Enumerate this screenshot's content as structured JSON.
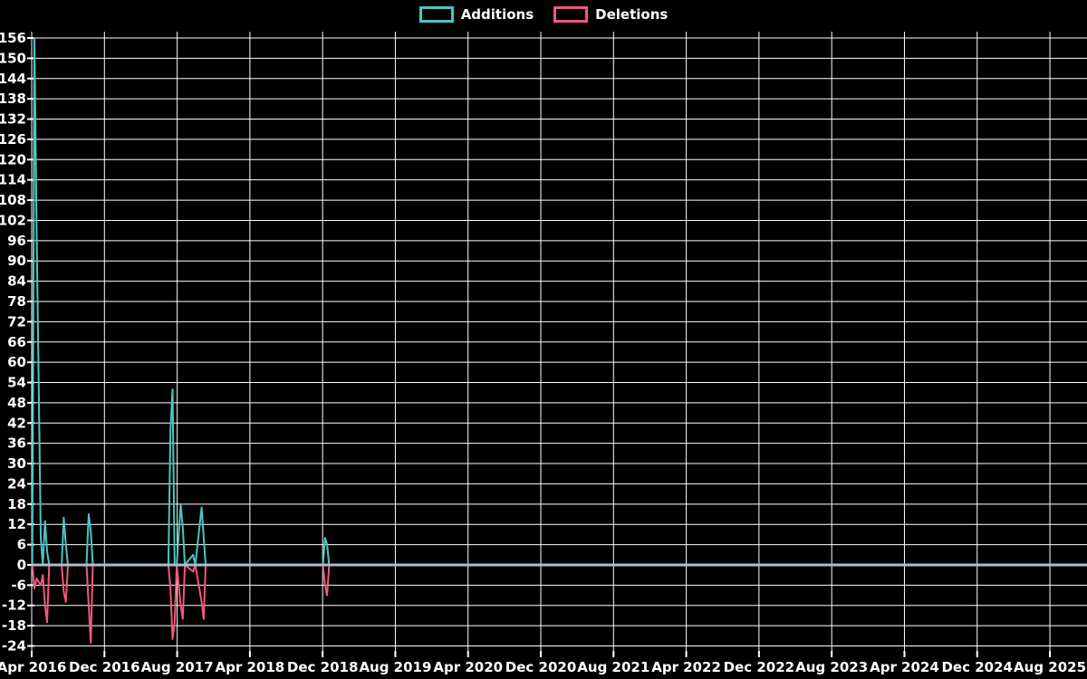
{
  "chart": {
    "background": "#000000",
    "grid_color": "#ffffff",
    "text_color": "#ffffff",
    "zero_line_color": "#abbecc",
    "legend": [
      {
        "label": "Additions",
        "color": "#4dc4c4"
      },
      {
        "label": "Deletions",
        "color": "#f0597d"
      }
    ]
  },
  "chart_data": {
    "type": "line",
    "title": "",
    "xlabel": "",
    "ylabel": "",
    "grid": true,
    "legend_position": "top-center",
    "y_axis": {
      "min": -24,
      "max": 156,
      "step": 6
    },
    "x_axis": {
      "start": "2016-04-01",
      "tick_interval_months": 8,
      "tick_labels": [
        "Apr 2016",
        "Dec 2016",
        "Aug 2017",
        "Apr 2018",
        "Dec 2018",
        "Aug 2019",
        "Apr 2020",
        "Dec 2020",
        "Aug 2021",
        "Apr 2022",
        "Dec 2022",
        "Aug 2023",
        "Apr 2024",
        "Dec 2024",
        "Aug 2025"
      ]
    },
    "series": [
      {
        "name": "Additions",
        "color": "#4dc4c4",
        "value_index": 1
      },
      {
        "name": "Deletions",
        "color": "#f0597d",
        "value_index": 2
      }
    ],
    "points": [
      [
        "2016-04-03",
        0,
        0
      ],
      [
        "2016-04-10",
        156,
        -7
      ],
      [
        "2016-04-17",
        102,
        -4
      ],
      [
        "2016-05-01",
        8,
        -6
      ],
      [
        "2016-05-08",
        0,
        -3
      ],
      [
        "2016-05-15",
        13,
        -12
      ],
      [
        "2016-05-22",
        4,
        -17
      ],
      [
        "2016-05-29",
        0,
        0
      ],
      [
        "2016-07-10",
        0,
        0
      ],
      [
        "2016-07-17",
        14,
        -8
      ],
      [
        "2016-07-24",
        6,
        -11
      ],
      [
        "2016-07-31",
        0,
        0
      ],
      [
        "2016-10-02",
        0,
        0
      ],
      [
        "2016-10-09",
        15,
        -12
      ],
      [
        "2016-10-16",
        10,
        -23
      ],
      [
        "2016-10-23",
        0,
        0
      ],
      [
        "2017-07-02",
        0,
        0
      ],
      [
        "2017-07-09",
        40,
        -7
      ],
      [
        "2017-07-16",
        52,
        -22
      ],
      [
        "2017-07-23",
        0,
        -17
      ],
      [
        "2017-07-30",
        0,
        0
      ],
      [
        "2017-08-13",
        18,
        -12
      ],
      [
        "2017-08-20",
        11,
        -16
      ],
      [
        "2017-08-27",
        0,
        0
      ],
      [
        "2017-09-24",
        3,
        -2
      ],
      [
        "2017-10-01",
        0,
        0
      ],
      [
        "2017-10-22",
        17,
        -11
      ],
      [
        "2017-10-29",
        8,
        -16
      ],
      [
        "2017-11-05",
        0,
        0
      ],
      [
        "2018-12-02",
        0,
        0
      ],
      [
        "2018-12-09",
        8,
        -6
      ],
      [
        "2018-12-16",
        6,
        -9
      ],
      [
        "2018-12-23",
        0,
        0
      ]
    ]
  }
}
